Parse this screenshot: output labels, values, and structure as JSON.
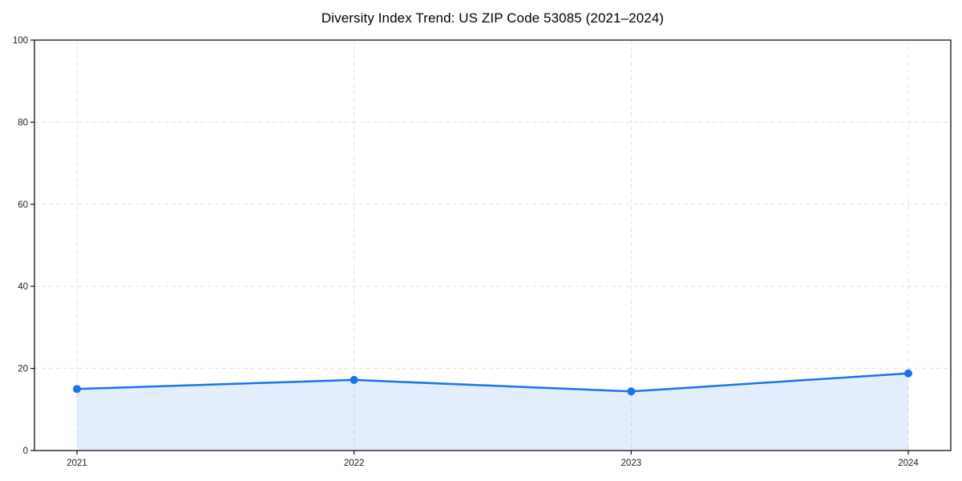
{
  "page": {
    "background": "#ffffff"
  },
  "chart_data": {
    "type": "line",
    "title": "Diversity Index Trend: US ZIP Code 53085 (2021–2024)",
    "x": [
      "2021",
      "2022",
      "2023",
      "2024"
    ],
    "series": [
      {
        "name": "Diversity Index",
        "values": [
          15.0,
          17.2,
          14.4,
          18.8
        ]
      }
    ],
    "xlabel": "",
    "ylabel": "",
    "ylim": [
      0,
      100
    ],
    "yticks": [
      0,
      20,
      40,
      60,
      80,
      100
    ],
    "grid": true,
    "grid_style": "dashed",
    "legend_position": "none",
    "line_color": "#1a73e8",
    "marker": "circle",
    "marker_color": "#1a73e8",
    "fill_under_line": true,
    "fill_color": "#1a73e8",
    "fill_opacity": 0.12,
    "grid_color": "#e0e0e0",
    "axis_color": "#111111",
    "tick_label_color": "#222222",
    "title_color": "#000000"
  }
}
